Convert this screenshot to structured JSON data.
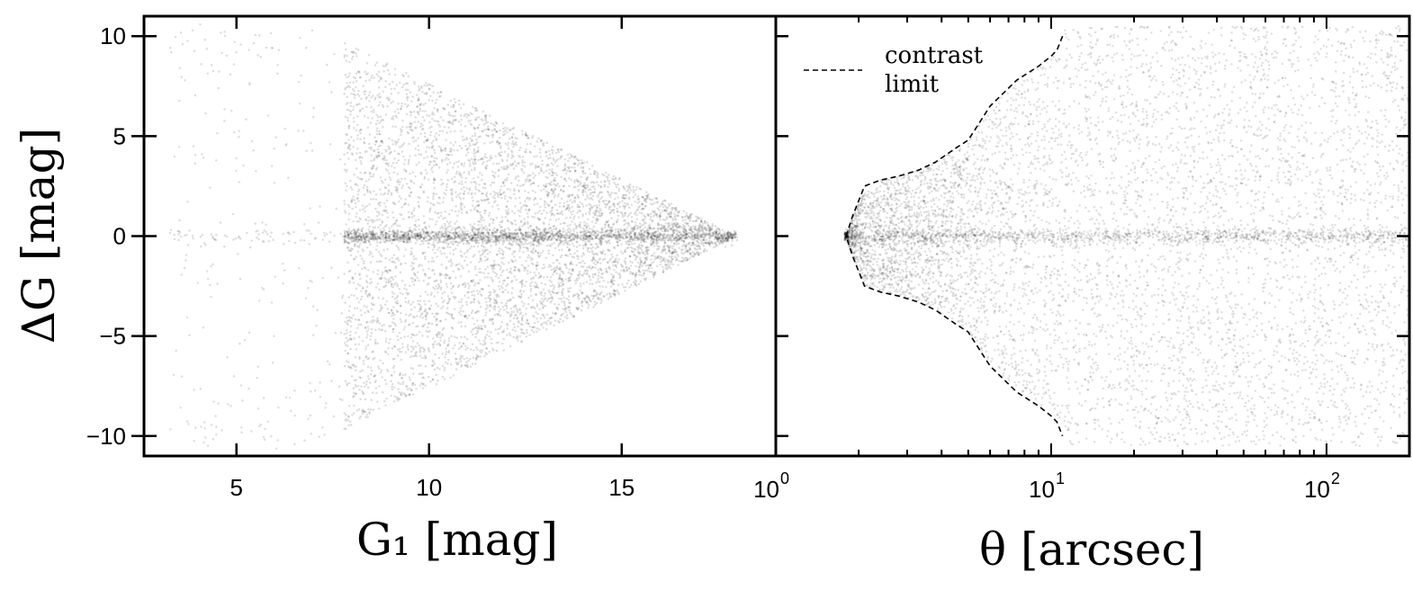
{
  "chart_data": [
    {
      "type": "scatter",
      "xlabel": "G₁ [mag]",
      "ylabel": "ΔG [mag]",
      "xlim": [
        2.6,
        19.0
      ],
      "ylim": [
        -11.0,
        11.0
      ],
      "x_ticks": [
        5,
        10,
        15
      ],
      "x_tick_labels": [
        "5",
        "10",
        "15"
      ],
      "y_ticks": [
        -10,
        -5,
        0,
        5,
        10
      ],
      "y_tick_labels": [
        "−10",
        "−5",
        "0",
        "5",
        "10"
      ],
      "grid": false,
      "point_color": "#000000",
      "density_description": {
        "envelope_apex_G1": 18.0,
        "envelope_left_G1": 8.0,
        "envelope_halfwidth_at_left": 9.5,
        "concentration_G1": 16.0
      }
    },
    {
      "type": "scatter",
      "xlabel": "θ [arcsec]",
      "ylabel": "",
      "xscale": "log",
      "xlim": [
        1,
        200
      ],
      "ylim": [
        -11.0,
        11.0
      ],
      "x_ticks": [
        1,
        10,
        100
      ],
      "x_tick_labels": [
        {
          "base": "10",
          "exp": "0"
        },
        {
          "base": "10",
          "exp": "1"
        },
        {
          "base": "10",
          "exp": "2"
        }
      ],
      "y_ticks": [
        -10,
        -5,
        0,
        5,
        10
      ],
      "grid": false,
      "legend": {
        "position": "top-left",
        "entries": [
          {
            "label_line1": "contrast",
            "label_line2": "limit",
            "style": "dashed"
          }
        ]
      },
      "series": [
        {
          "name": "contrast limit",
          "style": "dashed",
          "x": [
            11.0,
            10.5,
            10.0,
            9.0,
            7.5,
            6.0,
            5.0,
            4.5,
            3.8,
            3.3,
            2.8,
            2.4,
            2.1,
            1.9,
            1.8,
            1.9,
            2.1,
            2.4,
            2.8,
            3.3,
            3.8,
            4.5,
            5.0,
            6.0,
            7.5,
            9.0,
            10.0,
            10.5,
            11.0
          ],
          "y": [
            10.0,
            9.3,
            9.0,
            8.5,
            7.8,
            6.5,
            4.8,
            4.4,
            3.7,
            3.3,
            3.0,
            2.8,
            2.5,
            1.0,
            0.0,
            -1.0,
            -2.5,
            -2.8,
            -3.0,
            -3.3,
            -3.7,
            -4.4,
            -4.8,
            -6.5,
            -7.8,
            -8.5,
            -9.0,
            -9.3,
            -10.0
          ]
        }
      ],
      "density_description": {
        "concentration_theta": 2.6,
        "inner_edge_theta": 1.8
      }
    }
  ]
}
